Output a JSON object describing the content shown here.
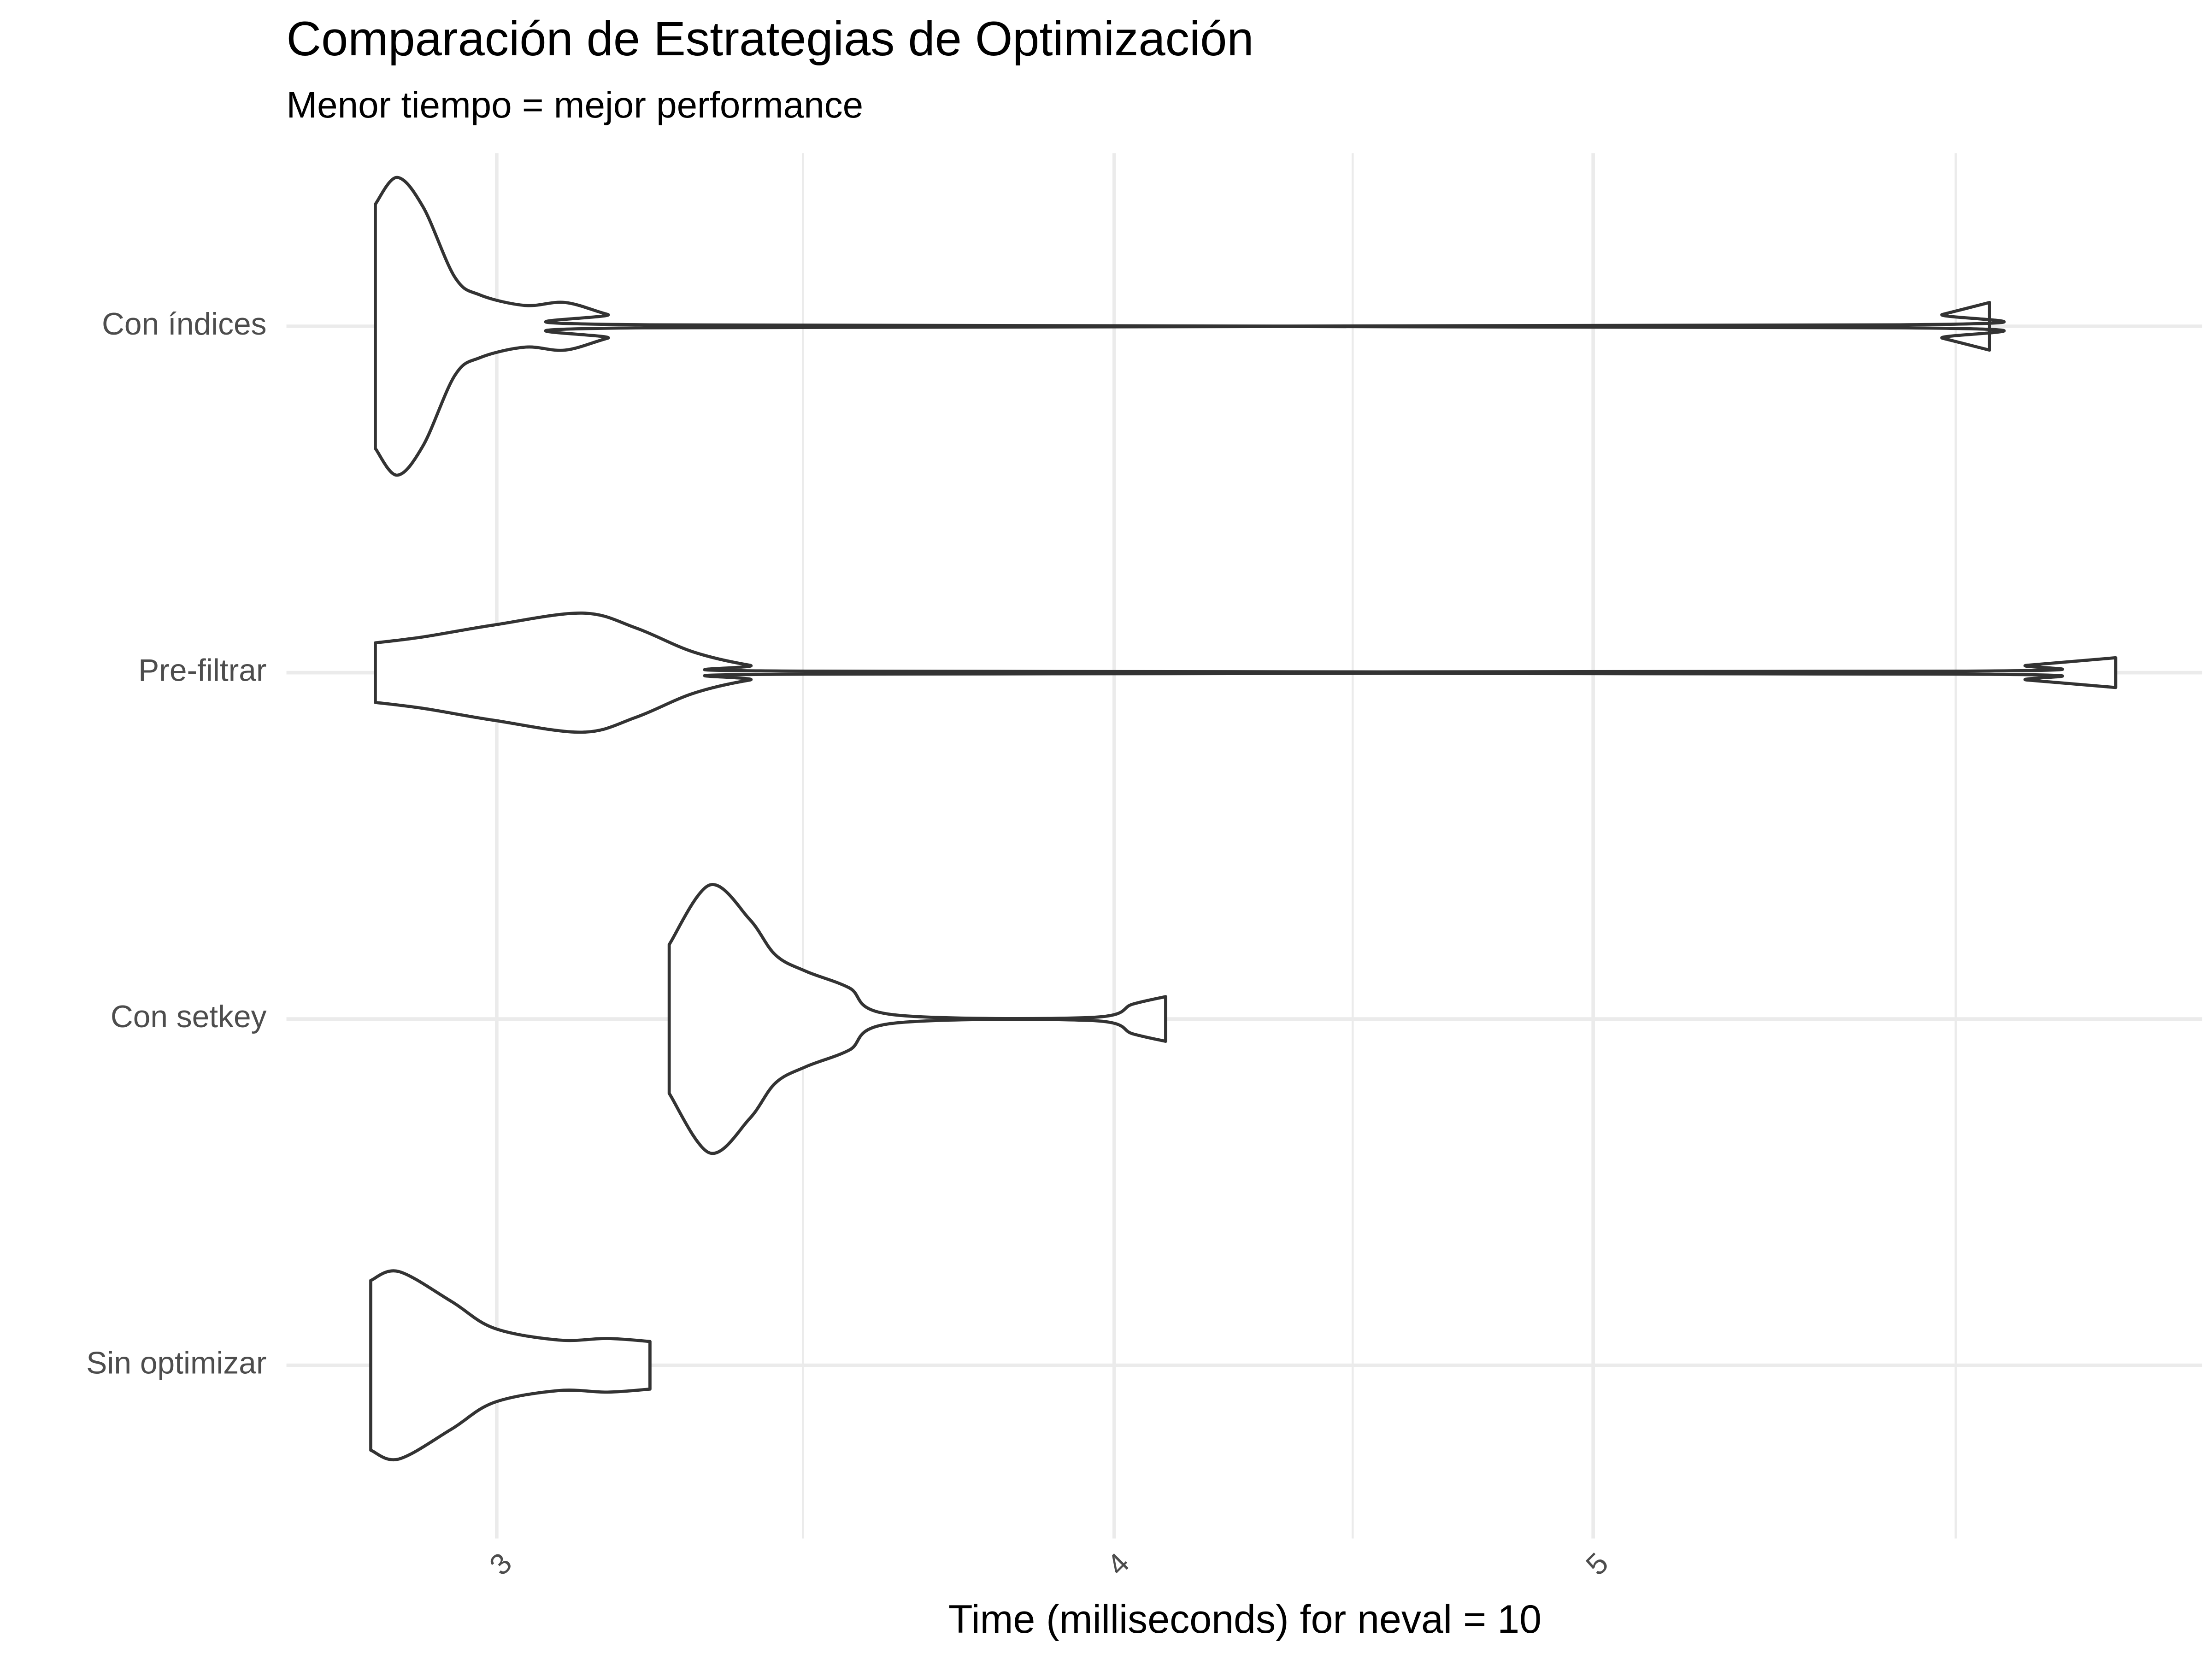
{
  "chart_data": {
    "type": "violin",
    "title": "Comparación de Estrategias de Optimización",
    "subtitle": "Menor tiempo = mejor performance",
    "xlabel": "Time (milliseconds) for neval = 10",
    "xscale": "log",
    "xlim": [
      2.72,
      6.64
    ],
    "xticks": [
      3,
      4,
      5
    ],
    "minor_xticks": [
      3.46,
      4.47,
      5.92
    ],
    "grid": true,
    "color": "#333333",
    "fill": "#ffffff",
    "groups": [
      {
        "name": "Con índices",
        "x": [
          2.835,
          2.864,
          2.899,
          2.942,
          2.977,
          3.04,
          3.097,
          3.159,
          3.222,
          5.768,
          5.884,
          6.014
        ],
        "density": [
          0.82,
          1.0,
          0.8,
          0.33,
          0.21,
          0.14,
          0.16,
          0.08,
          0.01,
          0.01,
          0.08,
          0.16
        ]
      },
      {
        "name": "Pre-filtrar",
        "x": [
          2.835,
          2.899,
          2.996,
          3.122,
          3.201,
          3.287,
          3.375,
          3.465,
          5.924,
          6.123,
          6.378
        ],
        "density": [
          0.2,
          0.24,
          0.32,
          0.4,
          0.3,
          0.14,
          0.05,
          0.01,
          0.01,
          0.05,
          0.1
        ]
      },
      {
        "name": "Con setkey",
        "x": [
          3.251,
          3.313,
          3.375,
          3.416,
          3.465,
          3.535,
          3.606,
          3.956,
          4.035,
          4.097
        ],
        "density": [
          0.5,
          0.9,
          0.67,
          0.43,
          0.32,
          0.21,
          0.03,
          0.01,
          0.1,
          0.15
        ]
      },
      {
        "name": "Sin optimizar",
        "x": [
          2.829,
          2.866,
          2.937,
          2.996,
          3.087,
          3.159,
          3.222
        ],
        "density": [
          0.57,
          0.63,
          0.43,
          0.25,
          0.17,
          0.18,
          0.16
        ]
      }
    ]
  }
}
